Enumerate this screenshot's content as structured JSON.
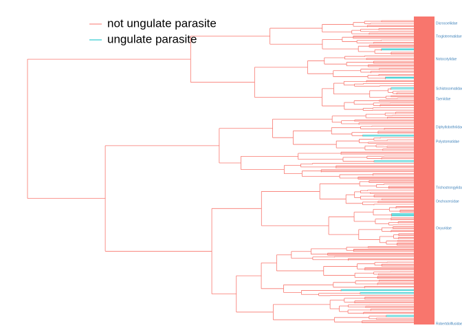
{
  "chart_data": {
    "type": "tree",
    "series": [
      {
        "name": "not ungulate parasite",
        "color": "#F8766D"
      },
      {
        "name": "ungulate parasite",
        "color": "#00BFC4"
      }
    ],
    "tip_labels": [
      "Dicrocoeliidae",
      "Troglotrematidae",
      "Notocotylidae",
      "Schistosomatidae",
      "Taeniidae",
      "Diphyllobothriidae",
      "Polystomatidae",
      "Trichostrongylidae",
      "Onchocercidae",
      "Oxyuridae",
      "Robertdollfusidae"
    ]
  }
}
